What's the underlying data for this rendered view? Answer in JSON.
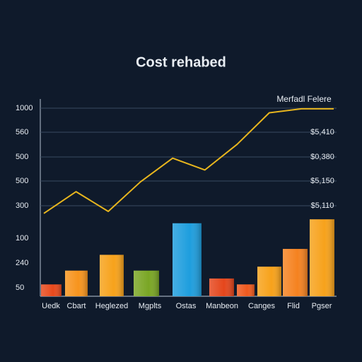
{
  "chart_data": {
    "type": "bar",
    "title": "Cost rehabed",
    "ylim": [
      0,
      100
    ],
    "y_labels": [
      "1000",
      "560",
      "500",
      "500",
      "300",
      "100",
      "240",
      "50"
    ],
    "right_labels": [
      "$5,410",
      "$0,380",
      "$5,150",
      "$5,110"
    ],
    "categories": [
      "Uedk",
      "Cbart",
      "Heglezed",
      "Mgplts",
      "Ostas",
      "Manbeon",
      null,
      "Canges",
      "Flid",
      "Pgser"
    ],
    "bars": {
      "values": [
        6,
        13,
        21,
        13,
        37,
        9,
        6,
        15,
        24,
        39
      ],
      "colors": [
        "#e8491c",
        "#f7941d",
        "#f7a21b",
        "#7aa624",
        "#1e9ede",
        "#e5461c",
        "#ef5a1e",
        "#f7a21b",
        "#f58220",
        "#f7a21b"
      ]
    },
    "line": {
      "name": "Merfadl Felere",
      "color": "#e8b61e",
      "values": [
        42,
        53,
        43,
        58,
        70,
        64,
        77,
        93,
        95,
        95
      ]
    }
  }
}
